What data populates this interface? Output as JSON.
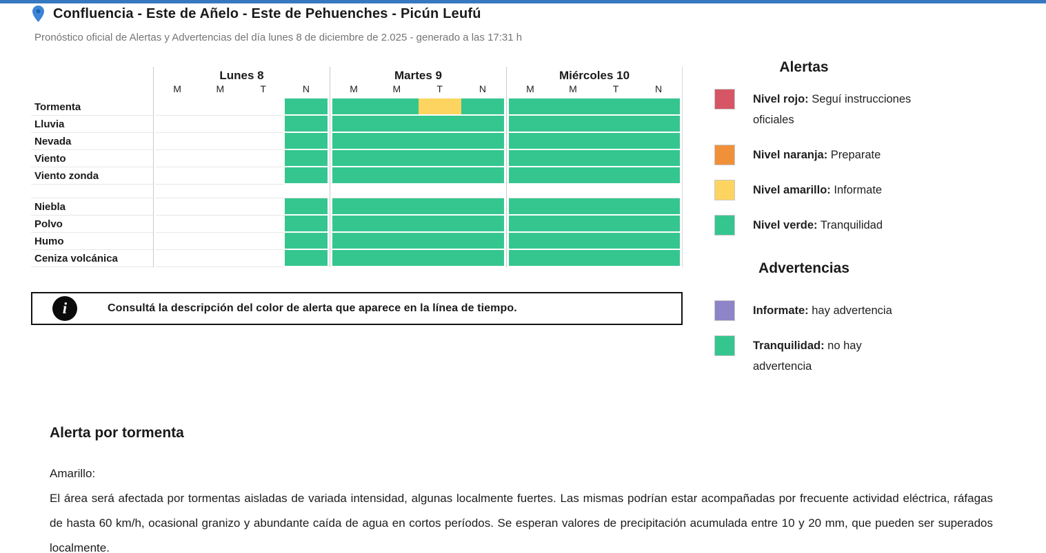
{
  "header": {
    "title": "Confluencia - Este de Añelo - Este de Pehuenches - Picún Leufú",
    "subtitle": "Pronóstico oficial de Alertas y Advertencias del día lunes 8 de diciembre de 2.025 - generado a las 17:31 h"
  },
  "colors": {
    "green": "#35c690",
    "yellow": "#fcd45f",
    "red": "#d65665",
    "orange": "#f0913a",
    "purple": "#8d85c8",
    "topbar_blue": "#3779c0",
    "pin_blue": "#3c85d8",
    "pin_blue_dark": "#1e63b0"
  },
  "timeline": {
    "days": [
      {
        "name": "Lunes 8",
        "periods": [
          "M",
          "M",
          "T",
          "N"
        ]
      },
      {
        "name": "Martes 9",
        "periods": [
          "M",
          "M",
          "T",
          "N"
        ]
      },
      {
        "name": "Miércoles 10",
        "periods": [
          "M",
          "M",
          "T",
          "N"
        ]
      }
    ],
    "groups": [
      {
        "rows": [
          {
            "label": "Tormenta",
            "cells": [
              [
                "empty",
                "empty",
                "empty",
                "green"
              ],
              [
                "green",
                "green",
                "yellow",
                "green"
              ],
              [
                "green",
                "green",
                "green",
                "green"
              ]
            ]
          },
          {
            "label": "Lluvia",
            "cells": [
              [
                "empty",
                "empty",
                "empty",
                "green"
              ],
              [
                "green",
                "green",
                "green",
                "green"
              ],
              [
                "green",
                "green",
                "green",
                "green"
              ]
            ]
          },
          {
            "label": "Nevada",
            "cells": [
              [
                "empty",
                "empty",
                "empty",
                "green"
              ],
              [
                "green",
                "green",
                "green",
                "green"
              ],
              [
                "green",
                "green",
                "green",
                "green"
              ]
            ]
          },
          {
            "label": "Viento",
            "cells": [
              [
                "empty",
                "empty",
                "empty",
                "green"
              ],
              [
                "green",
                "green",
                "green",
                "green"
              ],
              [
                "green",
                "green",
                "green",
                "green"
              ]
            ]
          },
          {
            "label": "Viento zonda",
            "cells": [
              [
                "empty",
                "empty",
                "empty",
                "green"
              ],
              [
                "green",
                "green",
                "green",
                "green"
              ],
              [
                "green",
                "green",
                "green",
                "green"
              ]
            ]
          }
        ]
      },
      {
        "rows": [
          {
            "label": "Niebla",
            "cells": [
              [
                "empty",
                "empty",
                "empty",
                "green"
              ],
              [
                "green",
                "green",
                "green",
                "green"
              ],
              [
                "green",
                "green",
                "green",
                "green"
              ]
            ]
          },
          {
            "label": "Polvo",
            "cells": [
              [
                "empty",
                "empty",
                "empty",
                "green"
              ],
              [
                "green",
                "green",
                "green",
                "green"
              ],
              [
                "green",
                "green",
                "green",
                "green"
              ]
            ]
          },
          {
            "label": "Humo",
            "cells": [
              [
                "empty",
                "empty",
                "empty",
                "green"
              ],
              [
                "green",
                "green",
                "green",
                "green"
              ],
              [
                "green",
                "green",
                "green",
                "green"
              ]
            ]
          },
          {
            "label": "Ceniza volcánica",
            "cells": [
              [
                "empty",
                "empty",
                "empty",
                "green"
              ],
              [
                "green",
                "green",
                "green",
                "green"
              ],
              [
                "green",
                "green",
                "green",
                "green"
              ]
            ]
          }
        ]
      }
    ]
  },
  "legend": {
    "alertas_title": "Alertas",
    "alertas": [
      {
        "color_key": "red",
        "term": "Nivel rojo:",
        "desc": "Seguí instrucciones oficiales"
      },
      {
        "color_key": "orange",
        "term": "Nivel naranja:",
        "desc": "Preparate"
      },
      {
        "color_key": "yellow",
        "term": "Nivel amarillo:",
        "desc": "Informate"
      },
      {
        "color_key": "green",
        "term": "Nivel verde:",
        "desc": "Tranquilidad"
      }
    ],
    "advertencias_title": "Advertencias",
    "advertencias": [
      {
        "color_key": "purple",
        "term": "Informate:",
        "desc": "hay advertencia"
      },
      {
        "color_key": "green",
        "term": "Tranquilidad:",
        "desc": "no hay advertencia"
      }
    ]
  },
  "info_box": {
    "text": "Consultá la descripción del color de alerta que aparece en la línea de tiempo."
  },
  "alert_detail": {
    "title": "Alerta por tormenta",
    "level": "Amarillo:",
    "description": "El área será afectada por tormentas aisladas de variada intensidad, algunas localmente fuertes. Las mismas podrían estar acompañadas por frecuente actividad eléctrica, ráfagas de hasta 60 km/h, ocasional granizo y abundante caída de agua en cortos períodos. Se esperan valores de precipitación acumulada entre 10 y 20 mm, que pueden ser superados localmente."
  }
}
